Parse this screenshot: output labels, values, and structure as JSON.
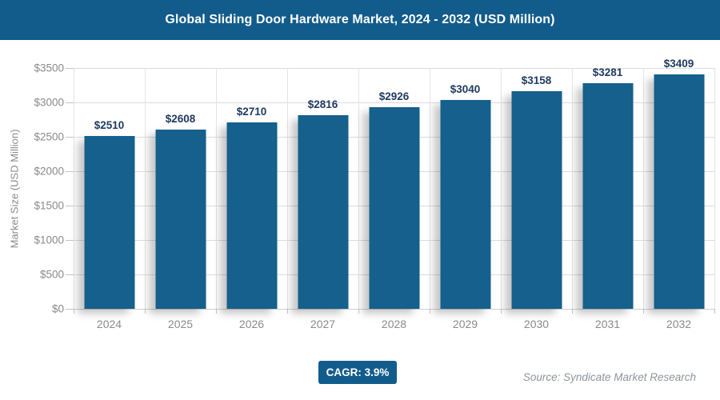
{
  "header": {
    "title": "Global Sliding Door Hardware Market, 2024 - 2032 (USD Million)"
  },
  "chart_data": {
    "type": "bar",
    "title": "Global Sliding Door Hardware Market, 2024 - 2032 (USD Million)",
    "categories": [
      "2024",
      "2025",
      "2026",
      "2027",
      "2028",
      "2029",
      "2030",
      "2031",
      "2032"
    ],
    "values": [
      2510,
      2608,
      2710,
      2816,
      2926,
      3040,
      3158,
      3281,
      3409
    ],
    "bar_labels": [
      "$2510",
      "$2608",
      "$2710",
      "$2816",
      "$2926",
      "$3040",
      "$3158",
      "$3281",
      "$3409"
    ],
    "xlabel": "",
    "ylabel": "Market Size (USD Million)",
    "ylim": [
      0,
      3500
    ],
    "ytick_step": 500,
    "ytick_prefix": "$",
    "ytick_labels": [
      "$0",
      "$500",
      "$1000",
      "$1500",
      "$2000",
      "$2500",
      "$3000",
      "$3500"
    ],
    "grid": true,
    "legend": "none"
  },
  "footer": {
    "cagr_badge": "CAGR: 3.9%",
    "source": "Source: Syndicate Market Research"
  },
  "colors": {
    "brand_blue": "#125C8C",
    "bar": "#15608C",
    "value_label": "#203A60",
    "axis_text": "#8A8A8A",
    "gridline": "#DCDCDC",
    "tick": "#C4C4C4",
    "source_text": "#8C949B"
  }
}
